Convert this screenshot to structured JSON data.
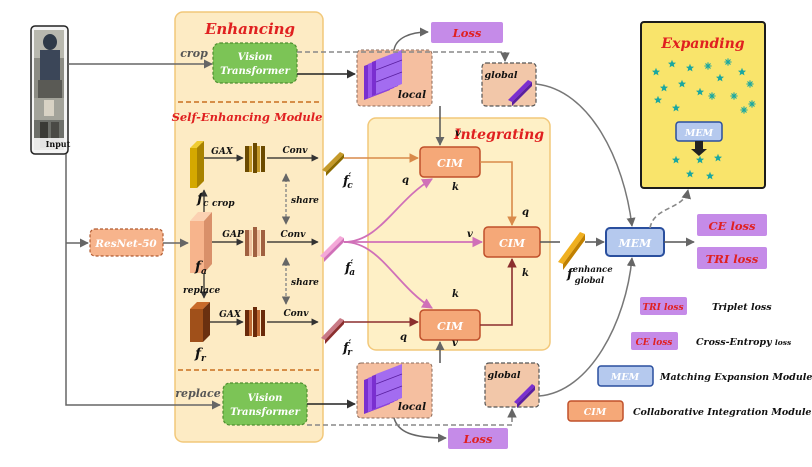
{
  "colors": {
    "enhance_bg": "#fdebc4",
    "enhance_border": "#f2c87a",
    "integrate_bg": "#fef0c6",
    "expand_bg": "#f9e46b",
    "expand_border": "#1c1c1c",
    "red_title": "#e02020",
    "vit_fill": "#7cc456",
    "cim_fill": "#f5a878",
    "cim_border": "#c0502a",
    "mem_fill": "#b5c9ee",
    "mem_border": "#2a4f9e",
    "loss_fill": "#c58be8",
    "loss_text": "#e02020",
    "resnet_fill": "#f7b48c",
    "arrow": "#666666",
    "pink_arrow": "#d070b8",
    "brown_arrow": "#8b2e2e",
    "orange_arrow": "#d98a4a",
    "teal_star": "#1aa7a0"
  },
  "labels": {
    "input": "Input",
    "crop": "crop",
    "replace": "replace",
    "enhancing": "Enhancing",
    "self_enhancing_module": "Self-Enhancing Module",
    "integrating": "Integrating",
    "expanding": "Expanding",
    "vit_line1": "Vision",
    "vit_line2": "Transformer",
    "resnet": "ResNet-50",
    "loss": "Loss",
    "local": "local",
    "global": "global",
    "gax": "GAX",
    "gap": "GAP",
    "conv": "Conv",
    "share": "share",
    "crop_small": "crop",
    "replace_small": "replace",
    "f": "f",
    "sub_c": "c",
    "sub_a": "a",
    "sub_r": "r",
    "prime": "′",
    "cim": "CIM",
    "mem": "MEM",
    "q": "q",
    "k": "k",
    "v": "v",
    "enhance_sup": "enhance",
    "global_sub": "global",
    "ce_loss": "CE loss",
    "tri_loss": "TRI loss"
  },
  "legend": [
    {
      "key": "TRI loss",
      "desc": "Triplet loss",
      "type": "loss"
    },
    {
      "key": "CE loss",
      "desc": "Cross-Entropy",
      "desc_small": "loss",
      "type": "loss"
    },
    {
      "key": "MEM",
      "desc": "Matching Expansion Module",
      "type": "mem"
    },
    {
      "key": "CIM",
      "desc": "Collaborative Integration Module",
      "type": "cim"
    }
  ]
}
